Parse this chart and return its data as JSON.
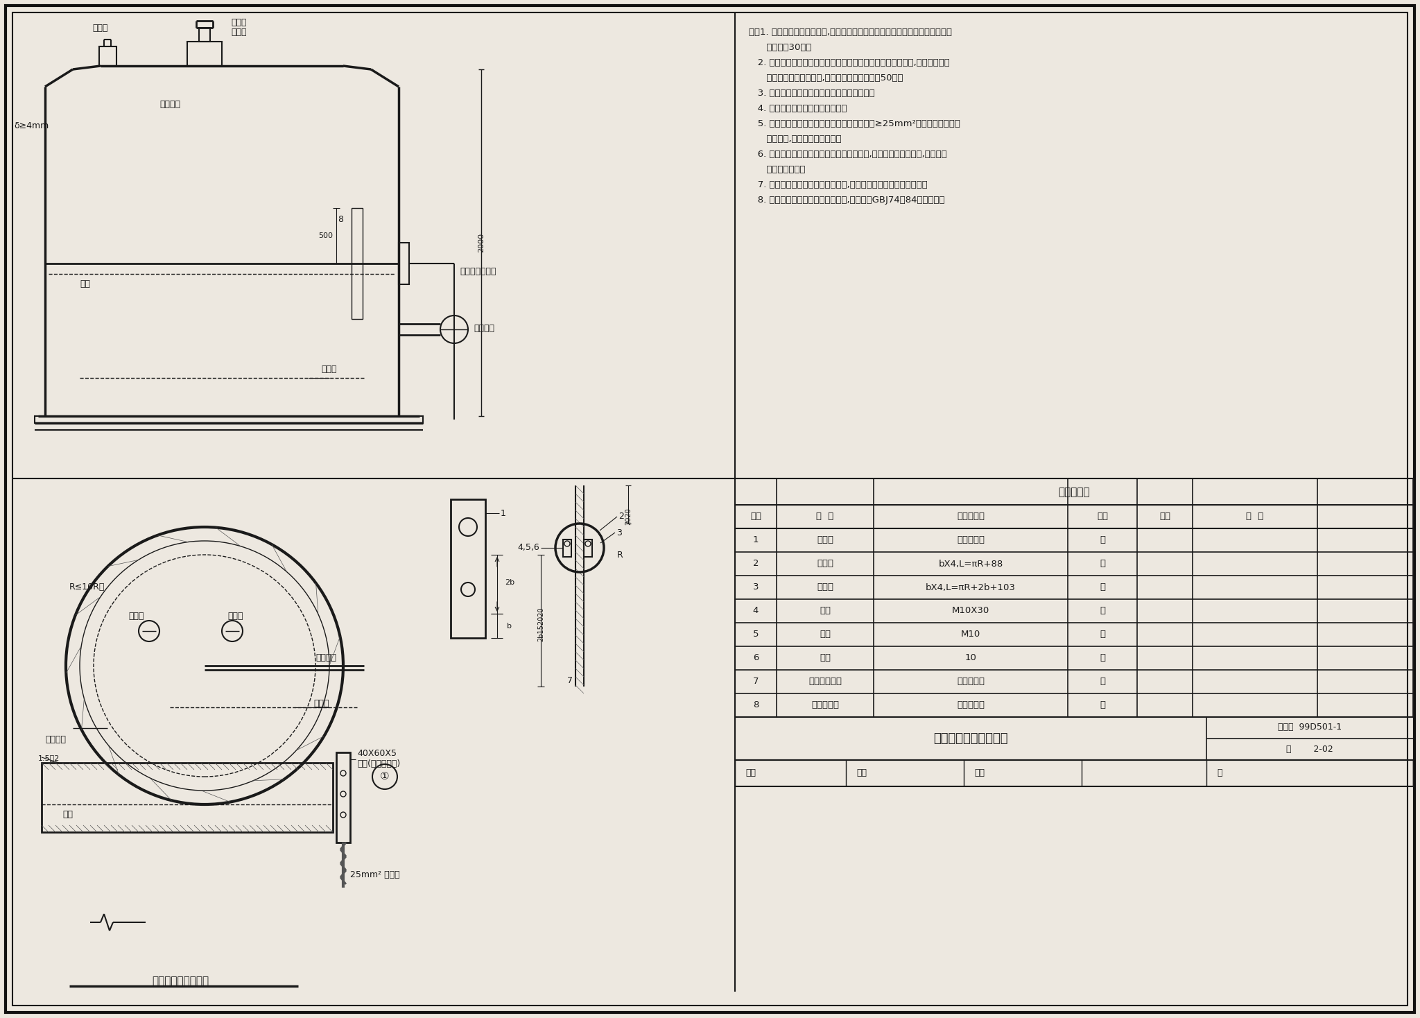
{
  "bg_color": "#ede8e0",
  "line_color": "#1a1a1a",
  "title": "金属油罐防雷接地做法",
  "figure_number": "99D501-1",
  "page": "2-02",
  "notes_lines": [
    "注：1. 钢油罐必须做防雷接地,其接地点不应少于两处，接地点沿油罐周长的间距",
    "      不宜大于30米。",
    "   2. 钢油罐上的温度、液位检测线必须采用铠装电缆或钢管配线,电缆外皮或钢",
    "      管应与罐体作可靠连接,电缆埋地长度不应小于50米。",
    "   3. 进出油罐管线与罐体之间应作等电位联结。",
    "   4. 固定罐顶需设阻火器和呼吸阀。",
    "   5. 对于浮顶金属油罐应将罐体与浮顶采用截面≥25mm²装有接线端子的软",
    "      铜线两根,作为等电位联接线。",
    "   6. 抱箍与管道接触处的接触表面须刮拭干净,安装完毕后刷防护漆,抱箍内径",
    "      等于管道外径。",
    "   7. 施工完毕后须测试导电的连续性,导电不良的连接处须做跨接线。",
    "   8. 其他油罐体防雷可参照本图施工,并应符合GBJ74－84有关要求。"
  ],
  "table_title": "设备材料表",
  "table_headers": [
    "编号",
    "名  称",
    "型号及规格",
    "单位",
    "数量",
    "备  注"
  ],
  "table_rows": [
    [
      "1",
      "输油管",
      "见工程设计",
      "米",
      "",
      ""
    ],
    [
      "2",
      "短抱箍",
      "bX4,L=πR+88",
      "个",
      "",
      ""
    ],
    [
      "3",
      "长抱箍",
      "bX4,L=πR+2b+103",
      "米",
      "",
      ""
    ],
    [
      "4",
      "螺栓",
      "M10X30",
      "米",
      "",
      ""
    ],
    [
      "5",
      "螺母",
      "M10",
      "个",
      "",
      ""
    ],
    [
      "6",
      "垫圈",
      "10",
      "个",
      "",
      ""
    ],
    [
      "7",
      "等电位联结线",
      "见工程设计",
      "米",
      "",
      ""
    ],
    [
      "8",
      "接地端子板",
      "由工程设定",
      "个",
      "",
      ""
    ]
  ],
  "subtitle": "浮顶油罐接地示意图"
}
